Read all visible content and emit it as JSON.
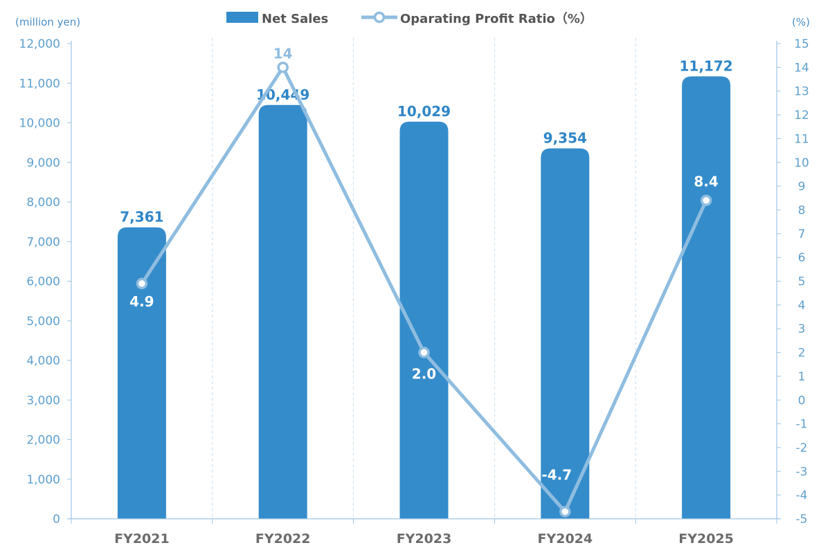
{
  "chart_data": {
    "type": "bar",
    "categories": [
      "FY2021",
      "FY2022",
      "FY2023",
      "FY2024",
      "FY2025"
    ],
    "series": [
      {
        "name": "Net Sales",
        "type": "bar",
        "axis": "left",
        "values": [
          7361,
          10449,
          10029,
          9354,
          11172
        ],
        "labels": [
          "7,361",
          "10,449",
          "10,029",
          "9,354",
          "11,172"
        ],
        "color": "#348ccb"
      },
      {
        "name": "Oparating Profit Ratio（%）",
        "type": "line",
        "axis": "right",
        "values": [
          4.9,
          14,
          2.0,
          -4.7,
          8.4
        ],
        "labels": [
          "4.9",
          "14",
          "2.0",
          "-4.7",
          "8.4"
        ],
        "color": "#8fbde0"
      }
    ],
    "y_left": {
      "label": "(million yen)",
      "ylim": [
        0,
        12000
      ],
      "ticks": [
        "0",
        "1,000",
        "2,000",
        "3,000",
        "4,000",
        "5,000",
        "6,000",
        "7,000",
        "8,000",
        "9,000",
        "10,000",
        "11,000",
        "12,000"
      ]
    },
    "y_right": {
      "label": "(%)",
      "ylim": [
        -5,
        15
      ],
      "ticks": [
        "-5",
        "-4",
        "-3",
        "-2",
        "-1",
        "0",
        "1",
        "2",
        "3",
        "4",
        "5",
        "6",
        "7",
        "8",
        "9",
        "10",
        "11",
        "12",
        "13",
        "14",
        "15"
      ]
    },
    "grid": "vertical-dashed",
    "legend_position": "top-center"
  }
}
